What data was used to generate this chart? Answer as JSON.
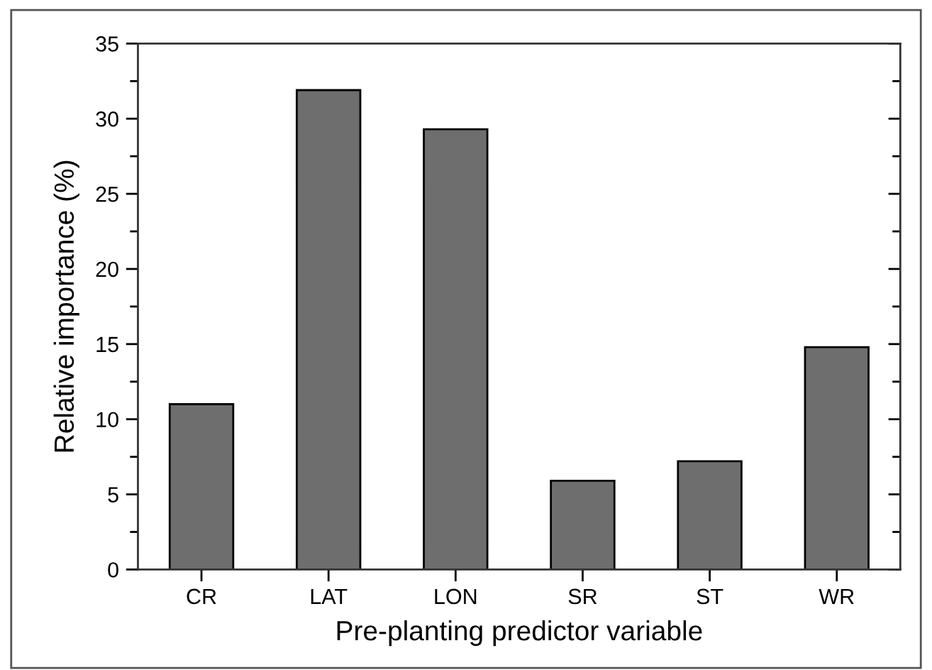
{
  "chart_data": {
    "type": "bar",
    "xlabel": "Pre-planting predictor variable",
    "ylabel": "Relative importance (%)",
    "categories": [
      "CR",
      "LAT",
      "LON",
      "SR",
      "ST",
      "WR"
    ],
    "values": [
      11.0,
      31.9,
      29.3,
      5.9,
      7.2,
      14.8
    ],
    "color": "#6e6e6e",
    "ylim": [
      0,
      35
    ],
    "yticks": [
      0,
      {
        "value": 2.5,
        "label": null
      },
      5,
      {
        "value": 7.5,
        "label": null
      },
      10,
      {
        "value": 12.5,
        "label": null
      },
      15,
      {
        "value": 17.5,
        "label": null
      },
      20,
      {
        "value": 22.5,
        "label": null
      },
      25,
      {
        "value": 27.5,
        "label": null
      },
      30,
      {
        "value": 32.5,
        "label": null
      },
      35
    ],
    "grid": false,
    "legend": false
  }
}
